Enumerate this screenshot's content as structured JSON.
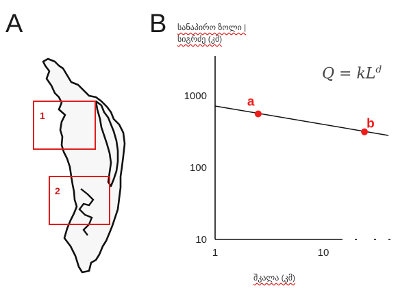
{
  "panels": {
    "a": "A",
    "b": "B"
  },
  "map": {
    "boxes": [
      {
        "label": "1"
      },
      {
        "label": "2"
      }
    ],
    "box_color": "#e01b1b"
  },
  "chart_data": {
    "type": "scatter",
    "title": "",
    "ylabel_lines": [
      "სანაპირო ზოლი |",
      "სიგრძე (კმ)"
    ],
    "xlabel": "შკალა (კმ)",
    "formula": "Q = kL^d",
    "x_scale": "log",
    "y_scale": "log",
    "xlim": [
      1,
      40
    ],
    "ylim": [
      10,
      5000
    ],
    "x_ticks": [
      1,
      10
    ],
    "y_ticks": [
      10,
      100,
      1000
    ],
    "fit_line": {
      "x": [
        1,
        40
      ],
      "y": [
        720,
        280
      ]
    },
    "points": [
      {
        "label": "a",
        "x": 2.5,
        "y": 560
      },
      {
        "label": "b",
        "x": 24,
        "y": 315
      }
    ],
    "point_color": "#ee1c1c",
    "grid": false
  }
}
